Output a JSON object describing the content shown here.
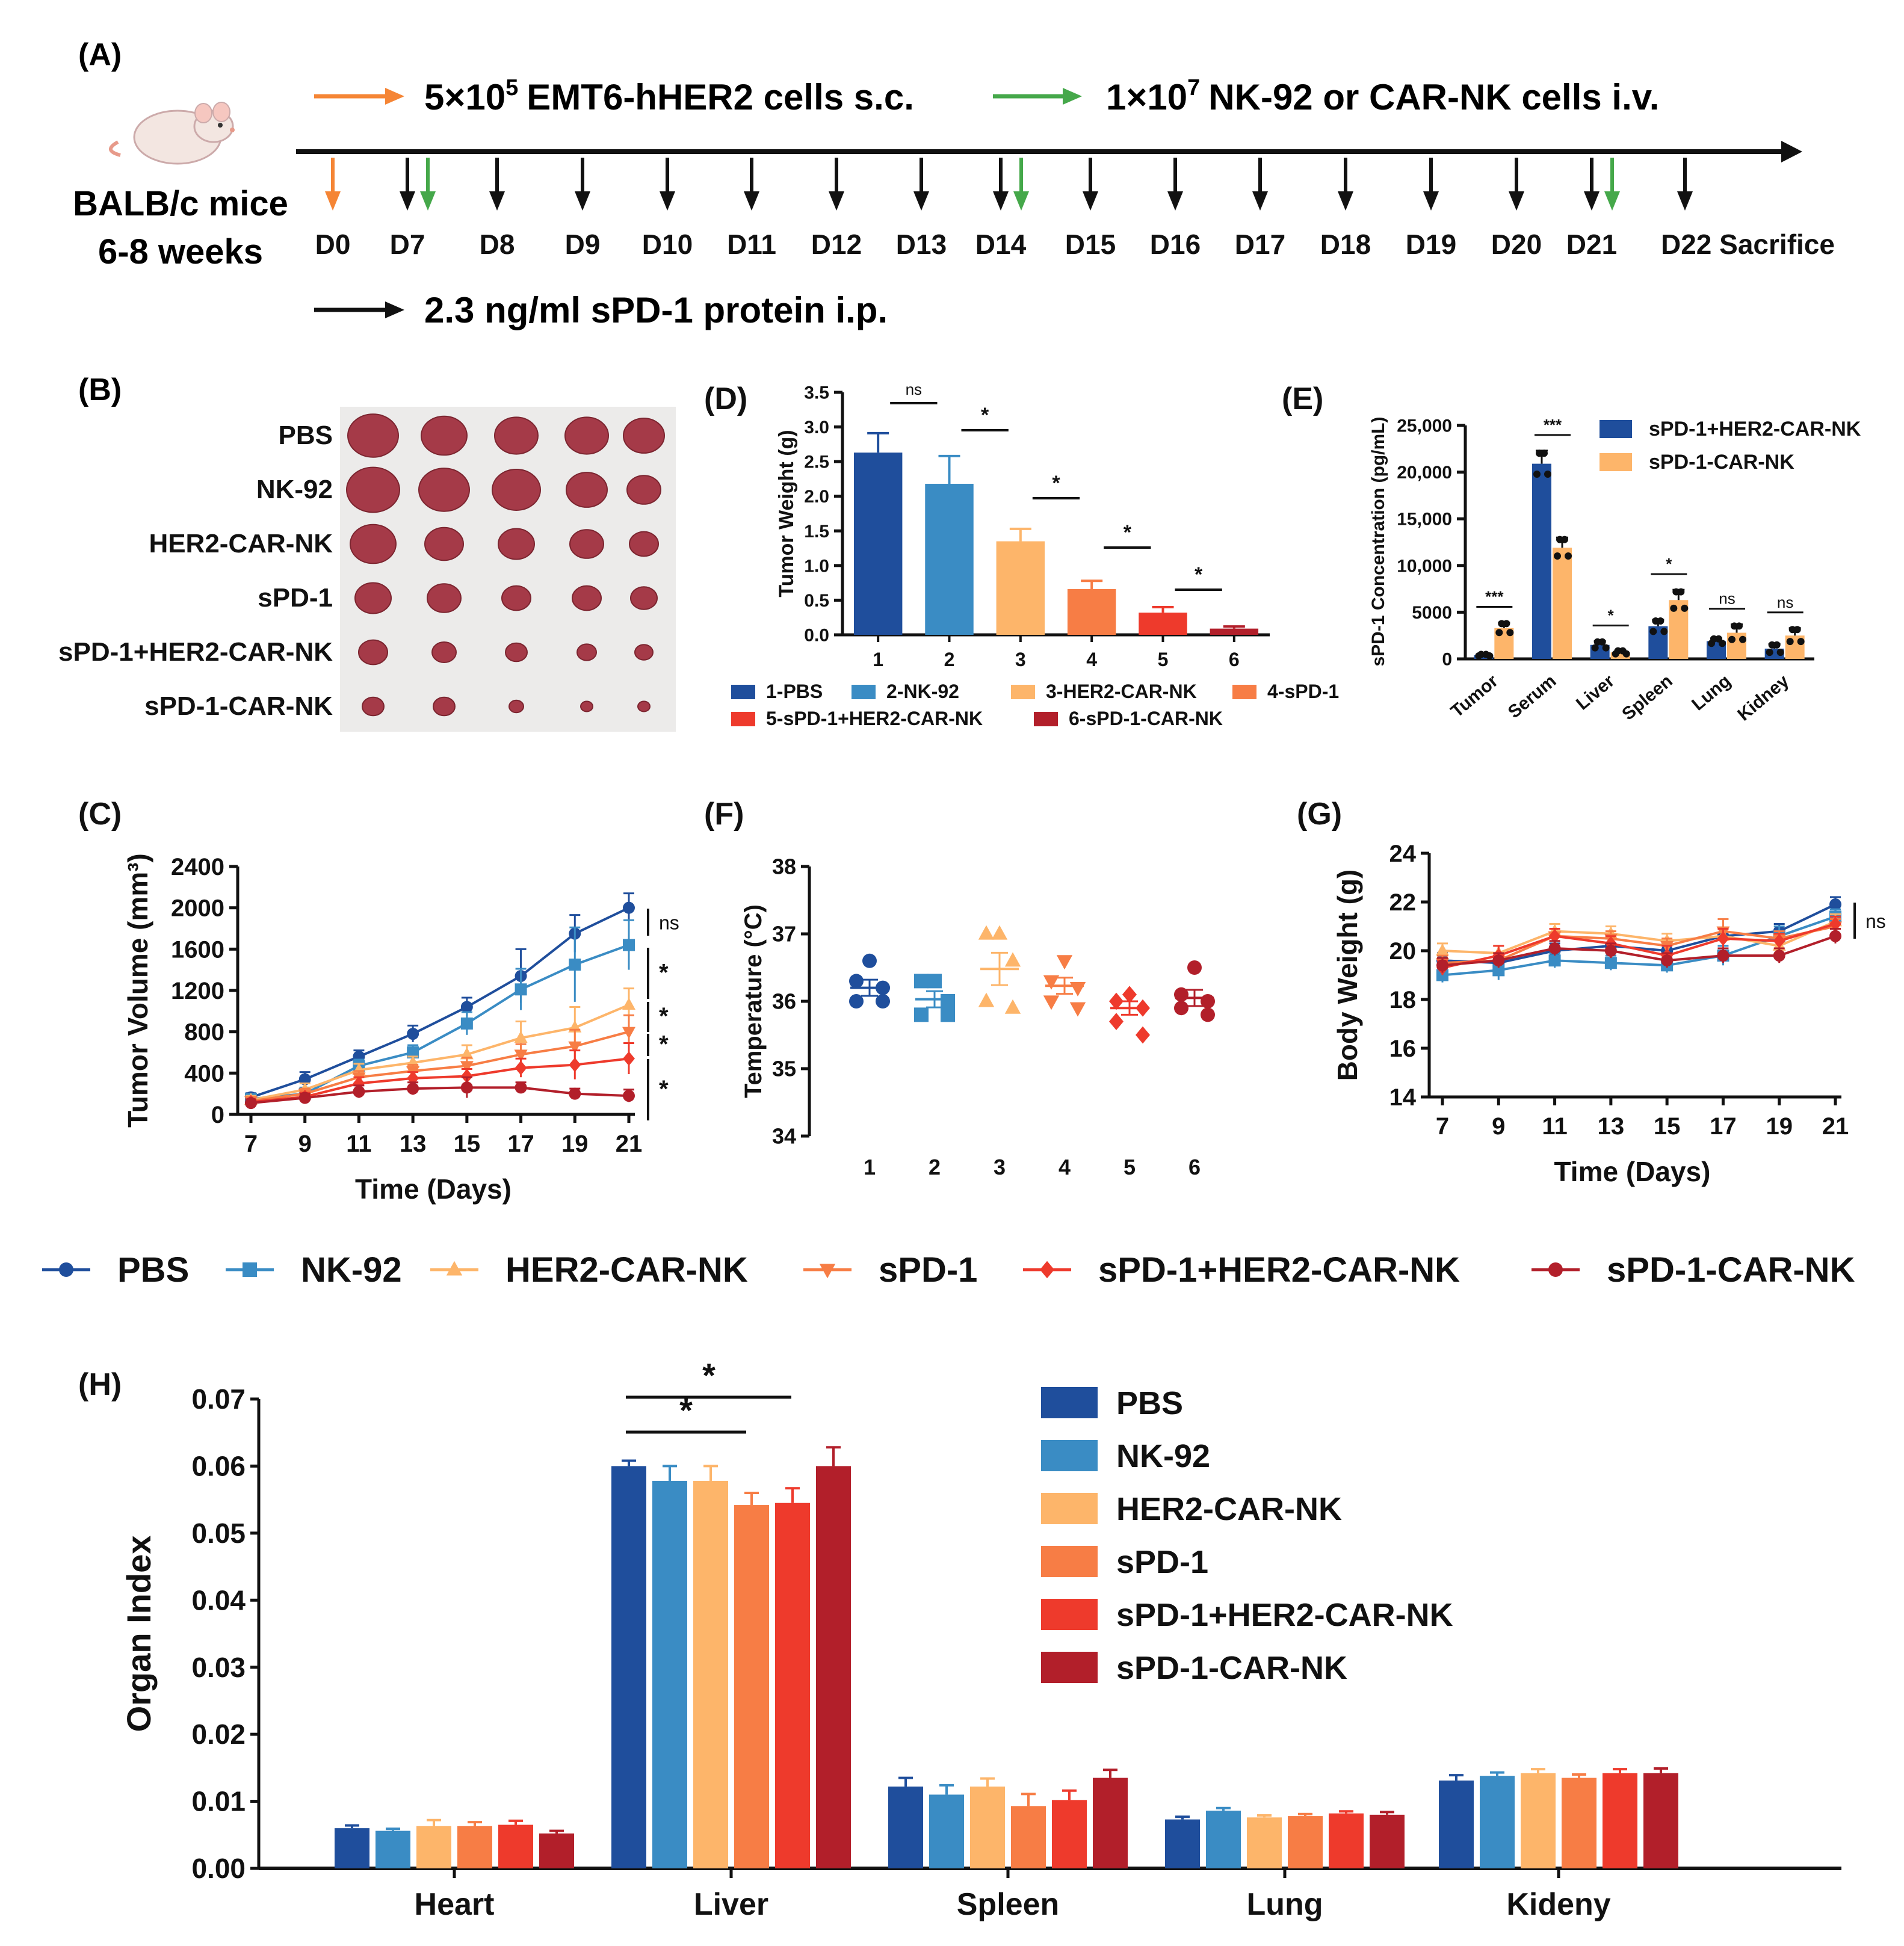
{
  "colors": {
    "pbs": "#1f4e9c",
    "nk92": "#3a8cc4",
    "her2": "#fdb56a",
    "spd1": "#f77d45",
    "combo": "#ee3a2c",
    "carnk": "#b21f2a",
    "arrow_orange": "#f58535",
    "arrow_green": "#45a84a",
    "black": "#111111"
  },
  "icons": {
    "mouse": "mouse-icon"
  },
  "panel_a": {
    "label": "(A)",
    "legend1_prefix": "5×10",
    "legend1_sup": "5",
    "legend1_suffix": "EMT6-hHER2 cells s.c.",
    "legend2_prefix": "1×10",
    "legend2_sup": "7",
    "legend2_suffix": "NK-92 or CAR-NK cells i.v.",
    "mouse_line1": "BALB/c mice",
    "mouse_line2": "6-8 weeks",
    "legend3": "2.3 ng/ml sPD-1 protein i.p.",
    "days": [
      "D0",
      "D7",
      "D8",
      "D9",
      "D10",
      "D11",
      "D12",
      "D13",
      "D14",
      "D15",
      "D16",
      "D17",
      "D18",
      "D19",
      "D20",
      "D21",
      "D22 Sacrifice"
    ]
  },
  "panel_b": {
    "label": "(B)",
    "rows": [
      "PBS",
      "NK-92",
      "HER2-CAR-NK",
      "sPD-1",
      "sPD-1+HER2-CAR-NK",
      "sPD-1-CAR-NK"
    ],
    "photo_caption": "tumor-photo"
  },
  "chart_data": [
    {
      "panel": "(C)",
      "type": "line",
      "title": "",
      "xlabel": "Time (Days)",
      "ylabel": "Tumor Volume (mm³)",
      "x": [
        7,
        9,
        11,
        13,
        15,
        17,
        19,
        21
      ],
      "xticks": [
        "7",
        "9",
        "11",
        "13",
        "15",
        "17",
        "19",
        "21"
      ],
      "ylim": [
        0,
        2400
      ],
      "yticks": [
        "0",
        "400",
        "800",
        "1200",
        "1600",
        "2000",
        "2400"
      ],
      "series": [
        {
          "name": "PBS",
          "values": [
            165,
            340,
            560,
            780,
            1040,
            1340,
            1750,
            2000
          ],
          "err": [
            40,
            70,
            60,
            80,
            90,
            260,
            180,
            140
          ]
        },
        {
          "name": "NK-92",
          "values": [
            150,
            200,
            470,
            600,
            880,
            1210,
            1450,
            1640
          ],
          "err": [
            40,
            60,
            60,
            70,
            110,
            200,
            360,
            240
          ]
        },
        {
          "name": "HER2-CAR-NK",
          "values": [
            140,
            240,
            430,
            500,
            580,
            740,
            840,
            1060
          ],
          "err": [
            40,
            60,
            60,
            60,
            90,
            160,
            200,
            160
          ]
        },
        {
          "name": "sPD-1",
          "values": [
            130,
            200,
            360,
            420,
            470,
            580,
            660,
            800
          ],
          "err": [
            40,
            50,
            60,
            60,
            80,
            100,
            160,
            160
          ]
        },
        {
          "name": "sPD-1+HER2-CAR-NK",
          "values": [
            120,
            170,
            300,
            350,
            370,
            450,
            480,
            540
          ],
          "err": [
            30,
            40,
            60,
            60,
            70,
            90,
            140,
            150
          ]
        },
        {
          "name": "sPD-1-CAR-NK",
          "values": [
            110,
            160,
            220,
            250,
            260,
            260,
            200,
            180
          ],
          "err": [
            30,
            40,
            60,
            60,
            100,
            50,
            50,
            60
          ]
        }
      ],
      "significance": [
        "ns",
        "*",
        "*",
        "*",
        "*"
      ]
    },
    {
      "panel": "(D)",
      "type": "bar",
      "title": "",
      "xlabel": "",
      "ylabel": "Tumor Weight (g)",
      "categories": [
        "1",
        "2",
        "3",
        "4",
        "5",
        "6"
      ],
      "values": [
        2.63,
        2.18,
        1.35,
        0.66,
        0.32,
        0.09
      ],
      "err": [
        0.28,
        0.4,
        0.18,
        0.12,
        0.08,
        0.03
      ],
      "ylim": [
        0,
        3.5
      ],
      "yticks": [
        "0.0",
        "0.5",
        "1.0",
        "1.5",
        "2.0",
        "2.5",
        "3.0",
        "3.5"
      ],
      "legend": [
        "1-PBS",
        "2-NK-92",
        "3-HER2-CAR-NK",
        "4-sPD-1",
        "5-sPD-1+HER2-CAR-NK",
        "6-sPD-1-CAR-NK"
      ],
      "significance": [
        "ns",
        "*",
        "*",
        "*",
        "*"
      ]
    },
    {
      "panel": "(E)",
      "type": "bar",
      "title": "",
      "xlabel": "",
      "ylabel": "sPD-1 Concentration (pg/mL)",
      "categories": [
        "Tumor",
        "Serum",
        "Liver",
        "Spleen",
        "Lung",
        "Kidney"
      ],
      "series": [
        {
          "name": "sPD-1+HER2-CAR-NK",
          "values": [
            400,
            20900,
            1500,
            3500,
            1900,
            1100
          ],
          "err": [
            100,
            1400,
            400,
            700,
            300,
            500
          ]
        },
        {
          "name": "sPD-1-CAR-NK",
          "values": [
            3300,
            11900,
            700,
            6300,
            2800,
            2500
          ],
          "err": [
            600,
            1100,
            200,
            1100,
            900,
            800
          ]
        }
      ],
      "ylim": [
        0,
        25000
      ],
      "yticks": [
        "0",
        "5000",
        "10,000",
        "15,000",
        "20,000",
        "25,000"
      ],
      "significance": [
        "***",
        "***",
        "*",
        "*",
        "ns",
        "ns"
      ]
    },
    {
      "panel": "(F)",
      "type": "scatter",
      "title": "",
      "xlabel": "",
      "ylabel": "Temperature (°C)",
      "categories": [
        "1",
        "2",
        "3",
        "4",
        "5",
        "6"
      ],
      "points": [
        [
          36.6,
          36.3,
          36.2,
          36.0,
          36.0
        ],
        [
          36.3,
          36.3,
          36.0,
          35.8,
          35.8
        ],
        [
          37.0,
          37.0,
          36.6,
          36.0,
          35.9
        ],
        [
          36.6,
          36.3,
          36.2,
          36.0,
          35.9
        ],
        [
          36.1,
          36.0,
          35.9,
          35.7,
          35.5
        ],
        [
          36.5,
          36.1,
          36.0,
          35.9,
          35.8
        ]
      ],
      "means": [
        36.2,
        36.03,
        36.48,
        36.23,
        35.9,
        36.05
      ],
      "sem": [
        0.12,
        0.12,
        0.24,
        0.12,
        0.1,
        0.12
      ],
      "ylim": [
        34,
        38
      ],
      "yticks": [
        "34",
        "35",
        "36",
        "37",
        "38"
      ]
    },
    {
      "panel": "(G)",
      "type": "line",
      "title": "",
      "xlabel": "Time (Days)",
      "ylabel": "Body Weight (g)",
      "x": [
        7,
        9,
        11,
        13,
        15,
        17,
        19,
        21
      ],
      "xticks": [
        "7",
        "9",
        "11",
        "13",
        "15",
        "17",
        "19",
        "21"
      ],
      "ylim": [
        14,
        24
      ],
      "yticks": [
        "14",
        "16",
        "18",
        "20",
        "22",
        "24"
      ],
      "series": [
        {
          "name": "PBS",
          "values": [
            19.6,
            19.5,
            20.0,
            20.2,
            20.0,
            20.6,
            20.8,
            21.9
          ],
          "err": [
            0.3,
            0.3,
            0.3,
            0.3,
            0.3,
            0.3,
            0.3,
            0.3
          ]
        },
        {
          "name": "NK-92",
          "values": [
            19.0,
            19.2,
            19.6,
            19.5,
            19.4,
            19.8,
            20.6,
            21.4
          ],
          "err": [
            0.3,
            0.4,
            0.3,
            0.3,
            0.3,
            0.4,
            0.4,
            0.3
          ]
        },
        {
          "name": "HER2-CAR-NK",
          "values": [
            20.0,
            19.9,
            20.8,
            20.7,
            20.4,
            20.6,
            20.2,
            21.2
          ],
          "err": [
            0.3,
            0.3,
            0.3,
            0.3,
            0.3,
            0.3,
            0.4,
            0.3
          ]
        },
        {
          "name": "sPD-1",
          "values": [
            19.5,
            19.6,
            20.6,
            20.5,
            20.2,
            20.8,
            20.5,
            21.0
          ],
          "err": [
            0.3,
            0.3,
            0.3,
            0.3,
            0.3,
            0.5,
            0.3,
            0.3
          ]
        },
        {
          "name": "sPD-1+HER2-CAR-NK",
          "values": [
            19.3,
            19.8,
            20.6,
            20.3,
            19.8,
            20.5,
            20.4,
            21.1
          ],
          "err": [
            0.3,
            0.4,
            0.3,
            0.3,
            0.4,
            0.4,
            0.3,
            0.3
          ]
        },
        {
          "name": "sPD-1-CAR-NK",
          "values": [
            19.4,
            19.6,
            20.1,
            20.0,
            19.6,
            19.8,
            19.8,
            20.6
          ],
          "err": [
            0.3,
            0.3,
            0.3,
            0.3,
            0.3,
            0.3,
            0.3,
            0.3
          ]
        }
      ],
      "significance": [
        "ns"
      ]
    },
    {
      "panel": "(H)",
      "type": "bar",
      "title": "",
      "xlabel": "",
      "ylabel": "Organ Index",
      "categories": [
        "Heart",
        "Liver",
        "Spleen",
        "Lung",
        "Kideny"
      ],
      "series": [
        {
          "name": "PBS",
          "values": [
            0.006,
            0.06,
            0.0122,
            0.0073,
            0.0131
          ],
          "err": [
            0.0004,
            0.0008,
            0.0013,
            0.0004,
            0.0008
          ]
        },
        {
          "name": "NK-92",
          "values": [
            0.0056,
            0.0578,
            0.011,
            0.0086,
            0.0138
          ],
          "err": [
            0.0003,
            0.0022,
            0.0014,
            0.0004,
            0.0005
          ]
        },
        {
          "name": "HER2-CAR-NK",
          "values": [
            0.0063,
            0.0578,
            0.0122,
            0.0076,
            0.0142
          ],
          "err": [
            0.0009,
            0.0022,
            0.0012,
            0.0003,
            0.0006
          ]
        },
        {
          "name": "sPD-1",
          "values": [
            0.0063,
            0.0542,
            0.0093,
            0.0078,
            0.0135
          ],
          "err": [
            0.0006,
            0.0018,
            0.0018,
            0.0003,
            0.0005
          ]
        },
        {
          "name": "sPD-1+HER2-CAR-NK",
          "values": [
            0.0065,
            0.0545,
            0.0102,
            0.0082,
            0.0142
          ],
          "err": [
            0.0006,
            0.0022,
            0.0014,
            0.0003,
            0.0006
          ]
        },
        {
          "name": "sPD-1-CAR-NK",
          "values": [
            0.0052,
            0.06,
            0.0135,
            0.008,
            0.0142
          ],
          "err": [
            0.0004,
            0.0028,
            0.0012,
            0.0004,
            0.0007
          ]
        }
      ],
      "ylim": [
        0,
        0.07
      ],
      "yticks": [
        "0.00",
        "0.01",
        "0.02",
        "0.03",
        "0.04",
        "0.05",
        "0.06",
        "0.07"
      ],
      "significance": [
        "*",
        "*"
      ]
    }
  ],
  "shared_legend": [
    "PBS",
    "NK-92",
    "HER2-CAR-NK",
    "sPD-1",
    "sPD-1+HER2-CAR-NK",
    "sPD-1-CAR-NK"
  ]
}
